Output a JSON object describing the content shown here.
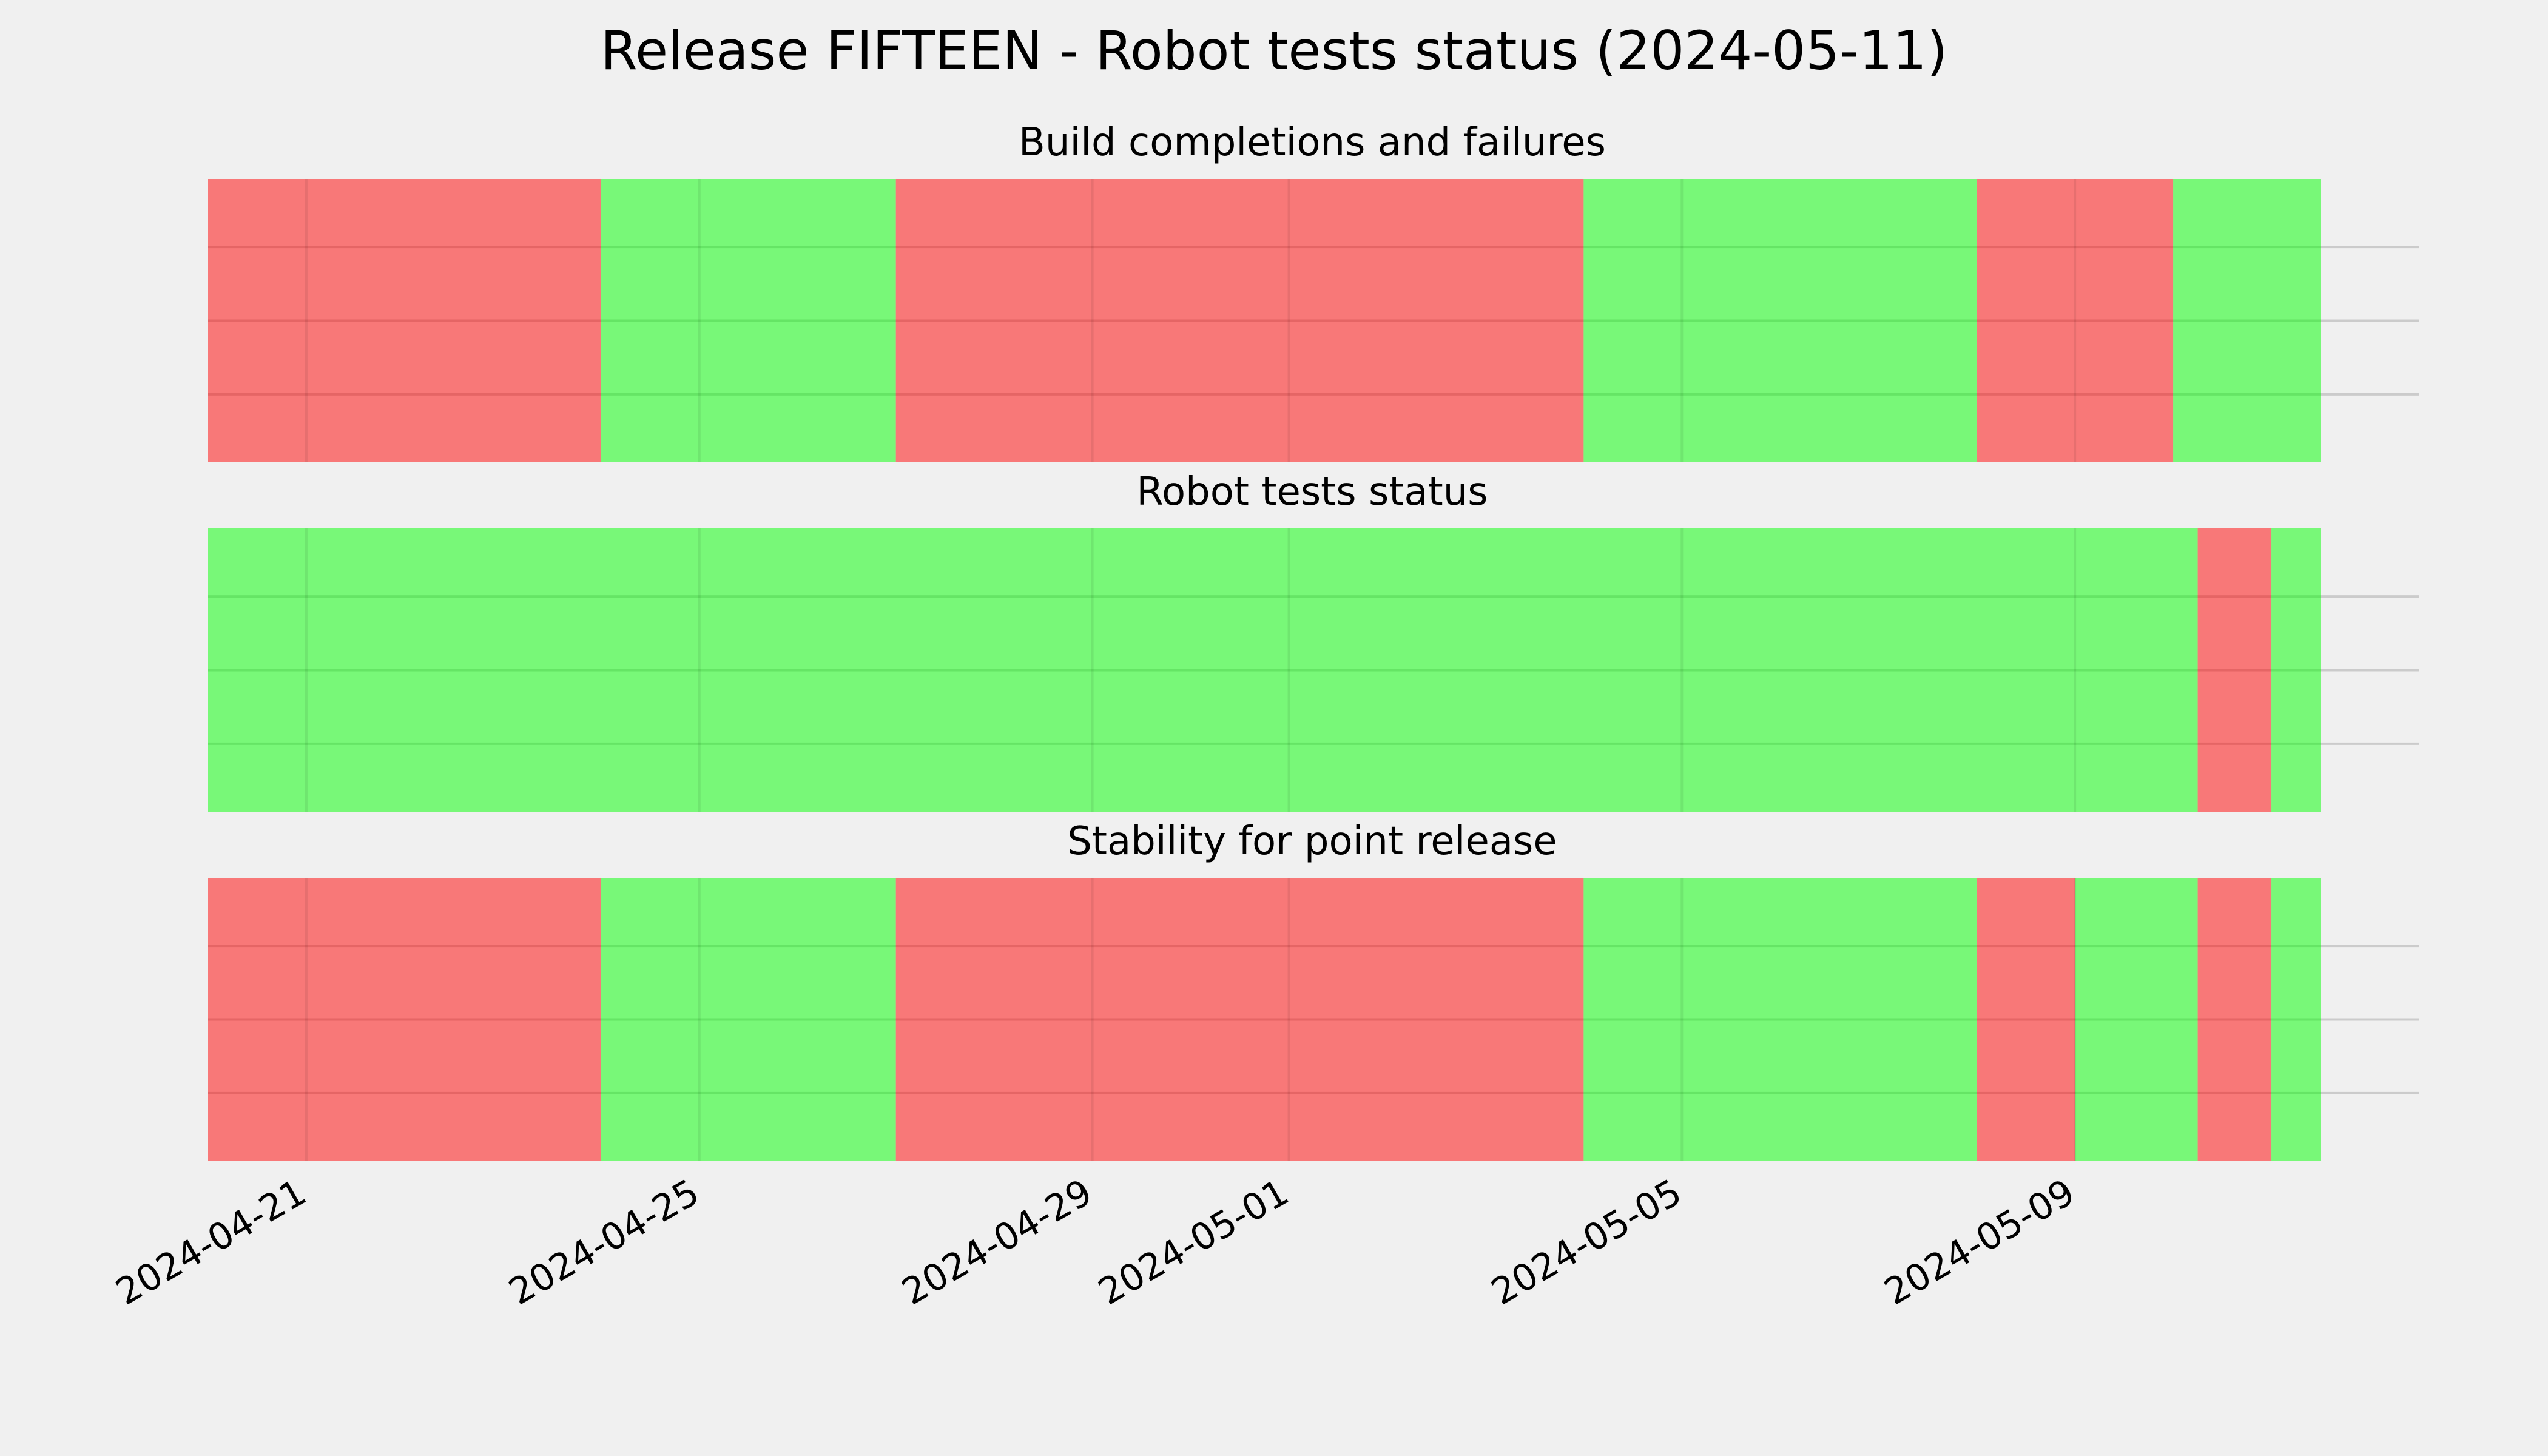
{
  "chart_data": {
    "type": "timeline",
    "title": "Release FIFTEEN - Robot tests status (2024-05-11)",
    "x_range": [
      "2024-04-20T00:00",
      "2024-05-12T12:00"
    ],
    "x_ticks": [
      "2024-04-21",
      "2024-04-25",
      "2024-04-29",
      "2024-05-01",
      "2024-05-05",
      "2024-05-09"
    ],
    "status_colors": {
      "failed": "#ff0000",
      "passed": "#00ff00"
    },
    "grid": true,
    "panels": [
      {
        "title": "Build completions and failures",
        "segments": [
          {
            "start": "2024-04-20T00:00",
            "end": "2024-04-24T00:00",
            "status": "failed"
          },
          {
            "start": "2024-04-24T00:00",
            "end": "2024-04-27T00:00",
            "status": "passed"
          },
          {
            "start": "2024-04-27T00:00",
            "end": "2024-05-04T00:00",
            "status": "failed"
          },
          {
            "start": "2024-05-04T00:00",
            "end": "2024-05-08T00:00",
            "status": "passed"
          },
          {
            "start": "2024-05-08T00:00",
            "end": "2024-05-10T00:00",
            "status": "failed"
          },
          {
            "start": "2024-05-10T00:00",
            "end": "2024-05-11T12:00",
            "status": "passed"
          }
        ]
      },
      {
        "title": "Robot tests status",
        "segments": [
          {
            "start": "2024-04-20T00:00",
            "end": "2024-05-10T06:00",
            "status": "passed"
          },
          {
            "start": "2024-05-10T06:00",
            "end": "2024-05-11T00:00",
            "status": "failed"
          },
          {
            "start": "2024-05-11T00:00",
            "end": "2024-05-11T12:00",
            "status": "passed"
          }
        ]
      },
      {
        "title": "Stability for point release",
        "segments": [
          {
            "start": "2024-04-20T00:00",
            "end": "2024-04-24T00:00",
            "status": "failed"
          },
          {
            "start": "2024-04-24T00:00",
            "end": "2024-04-27T00:00",
            "status": "passed"
          },
          {
            "start": "2024-04-27T00:00",
            "end": "2024-05-04T00:00",
            "status": "failed"
          },
          {
            "start": "2024-05-04T00:00",
            "end": "2024-05-08T00:00",
            "status": "passed"
          },
          {
            "start": "2024-05-08T00:00",
            "end": "2024-05-09T00:00",
            "status": "failed"
          },
          {
            "start": "2024-05-09T00:00",
            "end": "2024-05-10T06:00",
            "status": "passed"
          },
          {
            "start": "2024-05-10T06:00",
            "end": "2024-05-11T00:00",
            "status": "failed"
          },
          {
            "start": "2024-05-11T00:00",
            "end": "2024-05-11T12:00",
            "status": "passed"
          }
        ]
      }
    ]
  }
}
